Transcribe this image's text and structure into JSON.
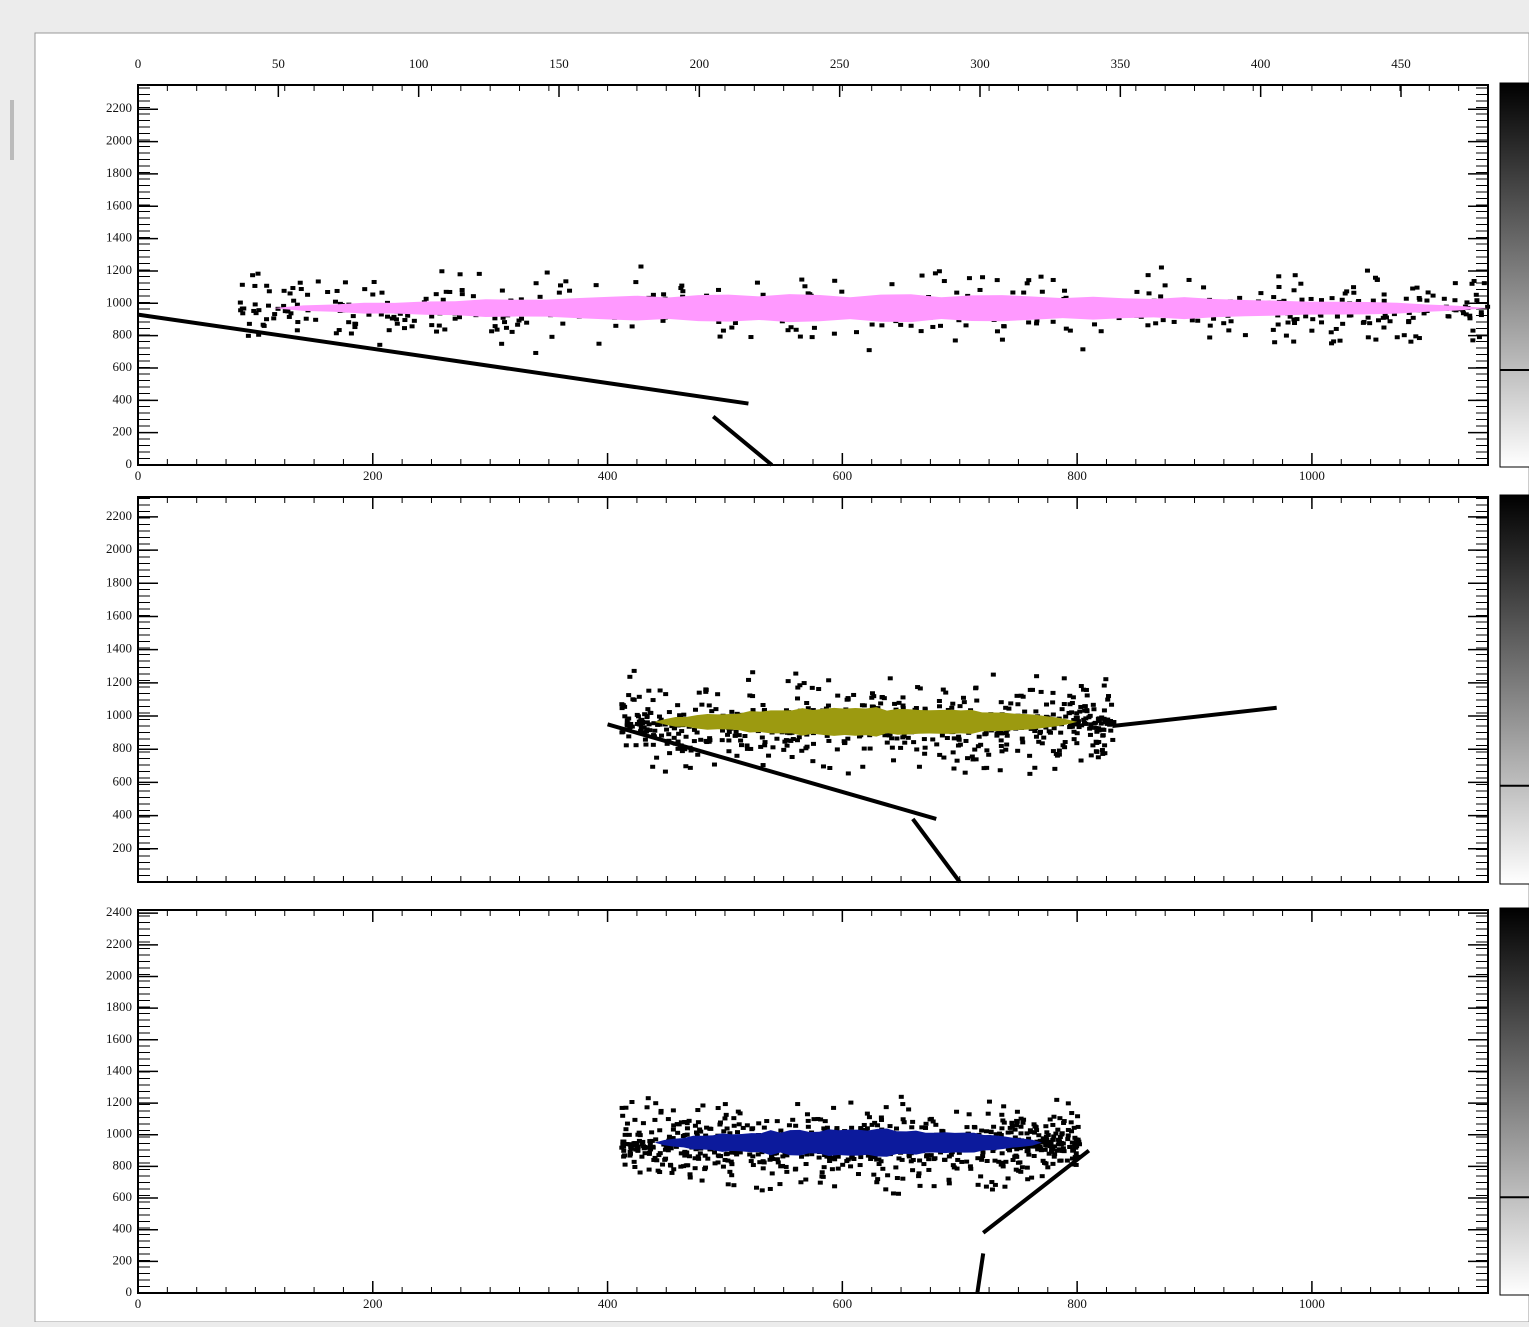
{
  "panels": [
    {
      "top_xticks": [
        0,
        50,
        100,
        150,
        200,
        250,
        300,
        350,
        400,
        450
      ],
      "top_xlim": [
        0,
        481
      ],
      "bottom_xticks": [
        0,
        200,
        400,
        600,
        800,
        1000
      ],
      "xlim": [
        0,
        1150
      ],
      "yticks": [
        0,
        200,
        400,
        600,
        800,
        1000,
        1200,
        1400,
        1600,
        1800,
        2000,
        2200
      ],
      "ylim": [
        0,
        2350
      ]
    },
    {
      "yticks": [
        200,
        400,
        600,
        800,
        1000,
        1200,
        1400,
        1600,
        1800,
        2000,
        2200
      ],
      "ylim": [
        0,
        2320
      ],
      "xlim": [
        0,
        1150
      ]
    },
    {
      "bottom_xticks": [
        0,
        200,
        400,
        600,
        800,
        1000
      ],
      "xlim": [
        0,
        1150
      ],
      "yticks": [
        0,
        200,
        400,
        600,
        800,
        1000,
        1200,
        1400,
        1600,
        1800,
        2000,
        2200,
        2400
      ],
      "ylim": [
        0,
        2420
      ]
    }
  ]
}
